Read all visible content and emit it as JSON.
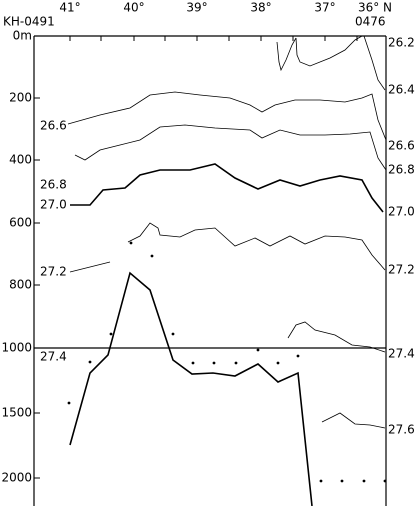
{
  "section": {
    "start_station": "KH-0491",
    "end_station": "0476"
  },
  "latitude_labels": [
    "41°",
    "40°",
    "39°",
    "38°",
    "37°",
    "36° N"
  ],
  "depth_labels": [
    "0m",
    "200",
    "400",
    "600",
    "800",
    "1000",
    "1500",
    "2000"
  ],
  "left_contour_labels": [
    "26.6",
    "26.8",
    "27.0",
    "27.2",
    "27.4"
  ],
  "right_contour_labels": [
    "26.2",
    "26.4",
    "26.6",
    "26.8",
    "27.0",
    "27.2",
    "27.4",
    "27.6"
  ]
}
